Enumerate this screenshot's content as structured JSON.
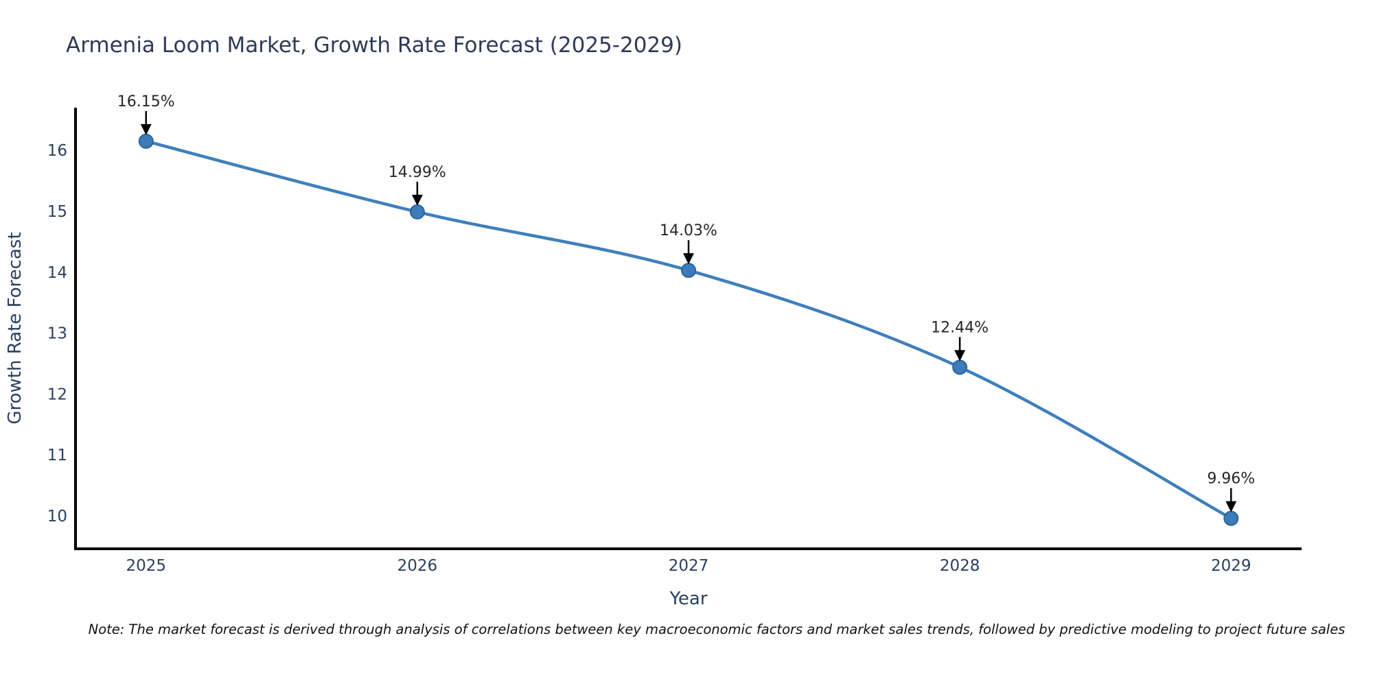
{
  "chart_data": {
    "type": "line",
    "title": "Armenia Loom Market, Growth Rate Forecast (2025-2029)",
    "xlabel": "Year",
    "ylabel": "Growth Rate Forecast",
    "x": [
      2025,
      2026,
      2027,
      2028,
      2029
    ],
    "y": [
      16.15,
      14.99,
      14.03,
      12.44,
      9.96
    ],
    "point_labels": [
      "16.15%",
      "14.99%",
      "14.03%",
      "12.44%",
      "9.96%"
    ],
    "xticks": [
      "2025",
      "2026",
      "2027",
      "2028",
      "2029"
    ],
    "yticks": [
      10,
      11,
      12,
      13,
      14,
      15,
      16
    ],
    "xlim": [
      2024.74,
      2029.26
    ],
    "ylim": [
      9.46,
      16.7
    ],
    "grid": false,
    "legend": "none",
    "line_shape": "spline",
    "colors": {
      "line": "#3f7fbc",
      "marker_fill": "#3c7cba",
      "marker_edge": "#2d6399",
      "axis": "#000000",
      "tick_text": "#2a3f5f",
      "axis_title_text": "#2a3f5f",
      "annotation_text": "#262626",
      "annotation_arrow": "#000000"
    }
  },
  "header": {
    "title": "Armenia Loom Market, Growth Rate Forecast (2025-2029)"
  },
  "footer": {
    "note": "Note: The market forecast is derived through analysis of correlations between key macroeconomic factors and market sales trends, followed by predictive modeling to project future sales"
  }
}
